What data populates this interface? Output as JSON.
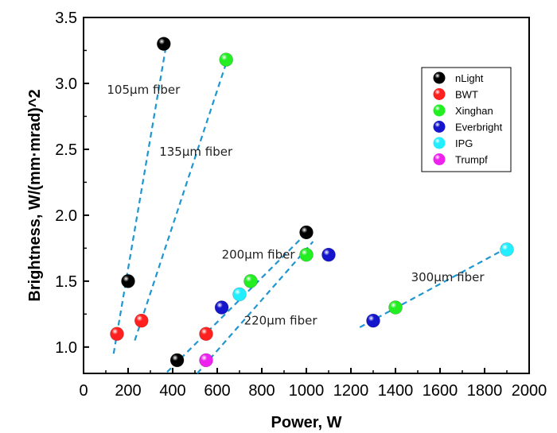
{
  "chart_data": {
    "type": "scatter",
    "title": "",
    "xlabel": "Power, W",
    "ylabel": "Brightness, W/(mm·mrad)^2",
    "xlim": [
      0,
      2000
    ],
    "ylim": [
      0.8,
      3.5
    ],
    "x_ticks": [
      "0",
      "200",
      "400",
      "600",
      "800",
      "1000",
      "1200",
      "1400",
      "1600",
      "1800",
      "2000"
    ],
    "y_ticks": [
      "1.0",
      "1.5",
      "2.0",
      "2.5",
      "3.0",
      "3.5"
    ],
    "grid": false,
    "legend_position": "top-right",
    "series": [
      {
        "name": "nLight",
        "color": "#000000",
        "points": [
          [
            360,
            3.3
          ],
          [
            200,
            1.5
          ],
          [
            1000,
            1.87
          ],
          [
            420,
            0.9
          ]
        ]
      },
      {
        "name": "BWT",
        "color": "#ff2020",
        "points": [
          [
            150,
            1.1
          ],
          [
            260,
            1.2
          ],
          [
            550,
            1.1
          ]
        ]
      },
      {
        "name": "Xinghan",
        "color": "#22ee22",
        "points": [
          [
            640,
            3.18
          ],
          [
            750,
            1.5
          ],
          [
            1000,
            1.7
          ],
          [
            1400,
            1.3
          ]
        ]
      },
      {
        "name": "Everbright",
        "color": "#1515cc",
        "points": [
          [
            620,
            1.3
          ],
          [
            1100,
            1.7
          ],
          [
            1300,
            1.2
          ]
        ]
      },
      {
        "name": "IPG",
        "color": "#22eeff",
        "points": [
          [
            700,
            1.4
          ],
          [
            1900,
            1.74
          ]
        ]
      },
      {
        "name": "Trumpf",
        "color": "#ee22ee",
        "points": [
          [
            550,
            0.9
          ]
        ]
      }
    ],
    "fit_lines": [
      {
        "label": "105µm fiber",
        "from": [
          135,
          0.95
        ],
        "to": [
          375,
          3.33
        ],
        "label_at": [
          105,
          2.92
        ]
      },
      {
        "label": "135µm fiber",
        "from": [
          230,
          1.05
        ],
        "to": [
          655,
          3.23
        ],
        "label_at": [
          340,
          2.45
        ]
      },
      {
        "label": "200µm fiber",
        "from": [
          375,
          0.81
        ],
        "to": [
          1010,
          1.88
        ],
        "label_at": [
          620,
          1.67
        ]
      },
      {
        "label": "220µm fiber",
        "from": [
          510,
          0.8
        ],
        "to": [
          1030,
          1.8
        ],
        "label_at": [
          720,
          1.17
        ]
      },
      {
        "label": "300µm fiber",
        "from": [
          1240,
          1.15
        ],
        "to": [
          1920,
          1.77
        ],
        "label_at": [
          1470,
          1.5
        ]
      }
    ],
    "line_color": "#1e96d2"
  }
}
